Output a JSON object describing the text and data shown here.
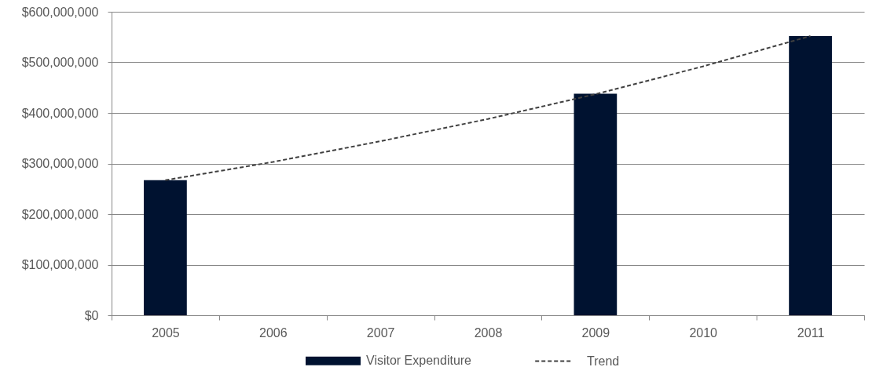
{
  "chart_data": {
    "type": "bar",
    "categories": [
      "2005",
      "2006",
      "2007",
      "2008",
      "2009",
      "2010",
      "2011"
    ],
    "series": [
      {
        "name": "Visitor Expenditure",
        "color": "#001230",
        "values": [
          267000000,
          null,
          null,
          null,
          438000000,
          null,
          552000000
        ]
      },
      {
        "name": "Trend",
        "type": "line",
        "color": "#404040",
        "line_style": "dashed",
        "values": [
          267000000,
          303000000,
          344000000,
          388000000,
          437000000,
          492000000,
          552000000
        ]
      }
    ],
    "ylim": [
      0,
      600000000
    ],
    "yticks": [
      {
        "value": 0,
        "label": "$0"
      },
      {
        "value": 100000000,
        "label": "$100,000,000"
      },
      {
        "value": 200000000,
        "label": "$200,000,000"
      },
      {
        "value": 300000000,
        "label": "$300,000,000"
      },
      {
        "value": 400000000,
        "label": "$400,000,000"
      },
      {
        "value": 500000000,
        "label": "$500,000,000"
      },
      {
        "value": 600000000,
        "label": "$600,000,000"
      }
    ],
    "grid": "y",
    "legend": "bottom"
  }
}
